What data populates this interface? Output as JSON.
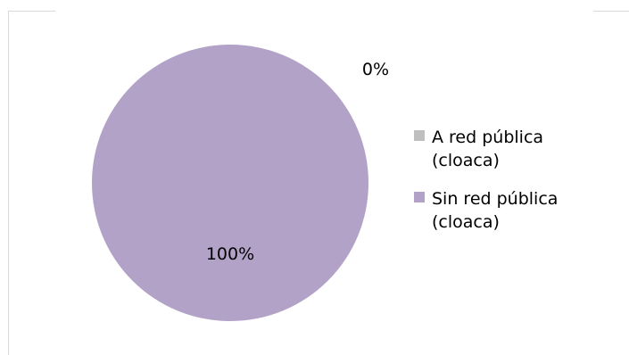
{
  "chart_data": {
    "type": "pie",
    "categories": [
      "A red pública (cloaca)",
      "Sin red pública (cloaca)"
    ],
    "values": [
      0,
      100
    ],
    "data_labels": [
      "0%",
      "100%"
    ],
    "colors": [
      "#bfbfbf",
      "#b3a2c7"
    ],
    "legend": {
      "placement": "right",
      "entries": [
        {
          "lines": [
            " A red pública",
            "(cloaca)"
          ],
          "color": "#bfbfbf"
        },
        {
          "lines": [
            "Sin red pública",
            "(cloaca)"
          ],
          "color": "#b3a2c7"
        }
      ]
    }
  }
}
